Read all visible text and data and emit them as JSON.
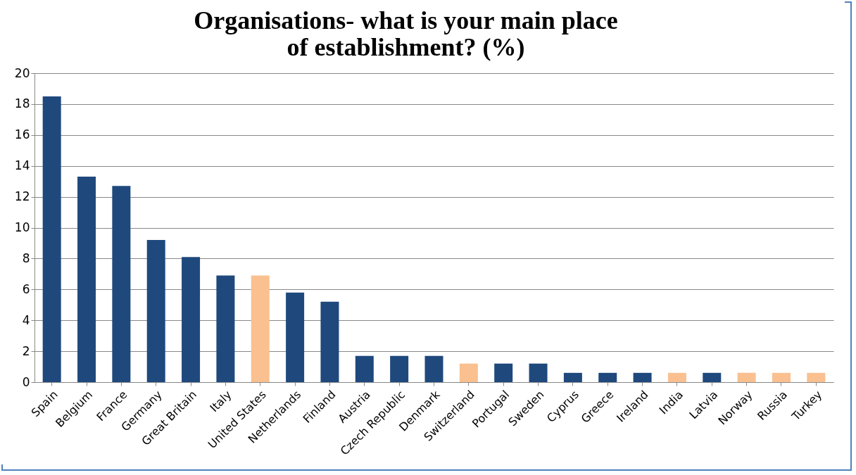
{
  "chart_data": {
    "type": "bar",
    "title": "Organisations- what is your main place of establishment? (%)",
    "categories": [
      "Spain",
      "Belgium",
      "France",
      "Germany",
      "Great Britain",
      "Italy",
      "United States",
      "Netherlands",
      "Finland",
      "Austria",
      "Czech Republic",
      "Denmark",
      "Switzerland",
      "Portugal",
      "Sweden",
      "Cyprus",
      "Greece",
      "Ireland",
      "India",
      "Latvia",
      "Norway",
      "Russia",
      "Turkey"
    ],
    "values": [
      18.5,
      13.3,
      12.7,
      9.2,
      8.1,
      6.9,
      6.9,
      5.8,
      5.2,
      1.7,
      1.7,
      1.7,
      1.2,
      1.2,
      1.2,
      0.6,
      0.6,
      0.6,
      0.6,
      0.6,
      0.6,
      0.6,
      0.6
    ],
    "colors": [
      "#1f497d",
      "#1f497d",
      "#1f497d",
      "#1f497d",
      "#1f497d",
      "#1f497d",
      "#fac090",
      "#1f497d",
      "#1f497d",
      "#1f497d",
      "#1f497d",
      "#1f497d",
      "#fac090",
      "#1f497d",
      "#1f497d",
      "#1f497d",
      "#1f497d",
      "#1f497d",
      "#fac090",
      "#1f497d",
      "#fac090",
      "#fac090",
      "#fac090"
    ],
    "ylim": [
      0,
      20
    ],
    "yticks": [
      0,
      2,
      4,
      6,
      8,
      10,
      12,
      14,
      16,
      18,
      20
    ],
    "grid": "y"
  }
}
